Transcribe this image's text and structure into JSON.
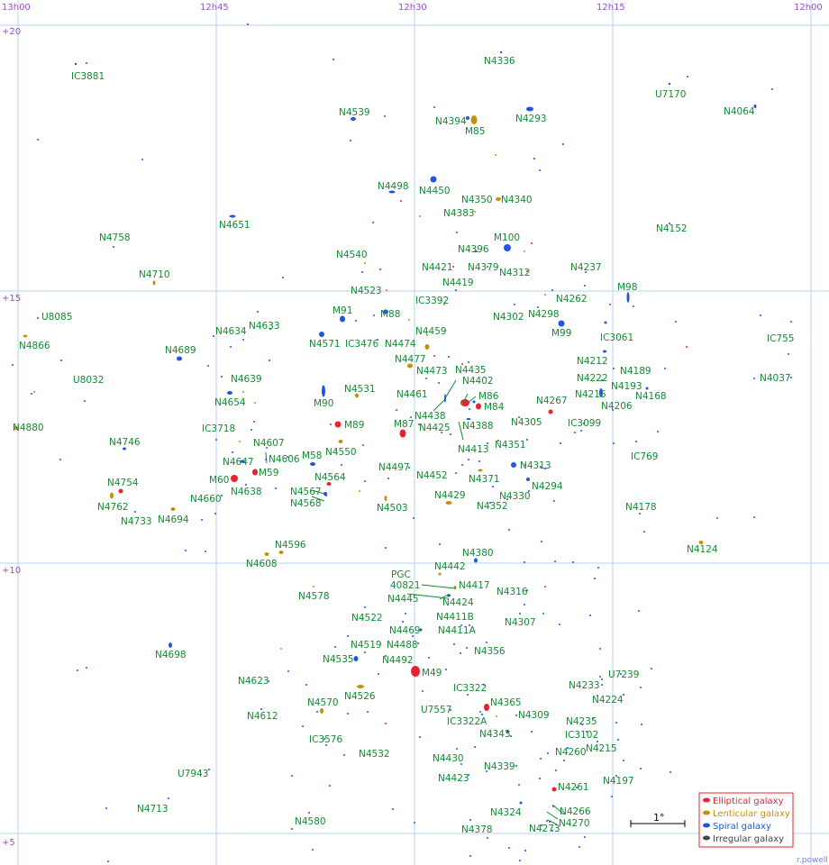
{
  "colors": {
    "elliptical": "#e8232d",
    "lenticular": "#c8900a",
    "spiral": "#1f55e6",
    "irregular": "#444444",
    "label": "#138a32",
    "grid": "#b8d0ec",
    "axis_label": "#9a4cc4",
    "legend_border": "#e8232d"
  },
  "grid": {
    "ra_labels": [
      "13h00",
      "12h45",
      "12h30",
      "12h15",
      "12h00"
    ],
    "dec_labels": [
      "+20",
      "+15",
      "+10",
      "+5"
    ]
  },
  "legend": {
    "items": [
      {
        "label": "Elliptical galaxy",
        "type": "elliptical"
      },
      {
        "label": "Lenticular galaxy",
        "type": "lenticular"
      },
      {
        "label": "Spiral galaxy",
        "type": "spiral"
      },
      {
        "label": "Irregular galaxy",
        "type": "irregular"
      }
    ]
  },
  "scale_bar": {
    "label": "1°"
  },
  "credit": "r.powell",
  "galaxy_labels": [
    "N4336",
    "IC3881",
    "U7170",
    "N4539",
    "N4394",
    "N4293",
    "N4064",
    "M85",
    "N4498",
    "N4450",
    "N4350",
    "N4340",
    "N4651",
    "N4383",
    "N4152",
    "N4758",
    "M100",
    "N4396",
    "N4540",
    "N4421",
    "N4379",
    "N4312",
    "N4237",
    "N4710",
    "N4419",
    "N4523",
    "M98",
    "IC3392",
    "N4262",
    "U8085",
    "M91",
    "M88",
    "N4302",
    "N4298",
    "N4633",
    "N4634",
    "N4459",
    "M99",
    "N4866",
    "N4571",
    "IC3476",
    "N4474",
    "IC3061",
    "IC755",
    "N4689",
    "N4477",
    "N4212",
    "N4189",
    "N4473",
    "N4435",
    "N4037",
    "N4639",
    "U8032",
    "N4222",
    "N4193",
    "N4531",
    "N4402",
    "N4461",
    "N4216",
    "N4168",
    "N4654",
    "M86",
    "M90",
    "N4267",
    "M84",
    "N4206",
    "N4438",
    "N4305",
    "IC3099",
    "M89",
    "M87",
    "IC3718",
    "N4880",
    "N4425",
    "N4388",
    "N4607",
    "N4746",
    "N4413",
    "N4351",
    "N4550",
    "N4606",
    "IC769",
    "N4647",
    "M58",
    "N4497",
    "N4313",
    "M59",
    "N4754",
    "N4564",
    "N4452",
    "N4371",
    "N4294",
    "M60",
    "N4638",
    "N4567",
    "N4330",
    "N4568",
    "N4429",
    "N4762",
    "N4660",
    "N4503",
    "N4352",
    "N4178",
    "N4733",
    "N4694",
    "N4596",
    "N4124",
    "N4380",
    "N4608",
    "N4442",
    "PGC",
    "40821",
    "N4417",
    "N4316",
    "N4578",
    "N4445",
    "N4424",
    "N4522",
    "N4411B",
    "N4307",
    "N4469",
    "N4411A",
    "N4698",
    "N4519",
    "N4488",
    "N4356",
    "N4535",
    "N4492",
    "U7239",
    "N4623",
    "M49",
    "IC3322",
    "N4233",
    "N4526",
    "N4224",
    "N4570",
    "N4365",
    "U7557",
    "N4309",
    "N4612",
    "IC3322A",
    "N4235",
    "N4343",
    "IC3576",
    "IC3102",
    "N4532",
    "N4215",
    "N4260",
    "N4430",
    "N4339",
    "N4423",
    "N4197",
    "U7943",
    "N4261",
    "N4713",
    "N4324",
    "N4266",
    "N4580",
    "N4273",
    "N4270",
    "N4378"
  ]
}
